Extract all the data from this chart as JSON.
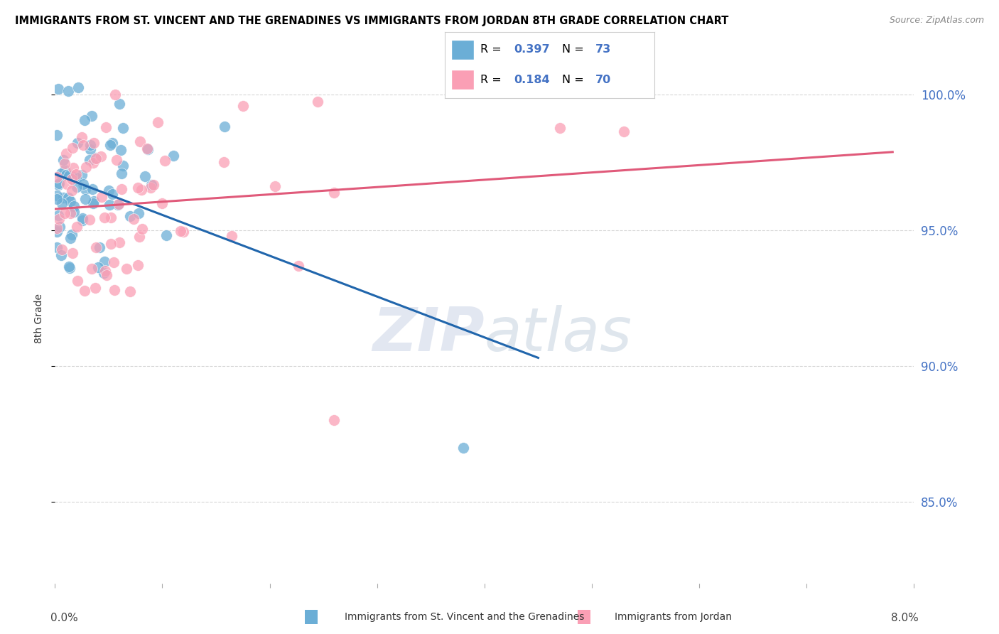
{
  "title": "IMMIGRANTS FROM ST. VINCENT AND THE GRENADINES VS IMMIGRANTS FROM JORDAN 8TH GRADE CORRELATION CHART",
  "source": "Source: ZipAtlas.com",
  "ylabel": "8th Grade",
  "xlim": [
    0.0,
    8.0
  ],
  "ylim": [
    82.0,
    101.5
  ],
  "yticks": [
    85.0,
    90.0,
    95.0,
    100.0
  ],
  "xticks": [
    0.0,
    1.0,
    2.0,
    3.0,
    4.0,
    5.0,
    6.0,
    7.0,
    8.0
  ],
  "blue_color": "#6baed6",
  "pink_color": "#fa9fb5",
  "blue_line_color": "#2166ac",
  "pink_line_color": "#e05a7a",
  "R_blue": 0.397,
  "N_blue": 73,
  "R_pink": 0.184,
  "N_pink": 70,
  "legend_label_blue": "Immigrants from St. Vincent and the Grenadines",
  "legend_label_pink": "Immigrants from Jordan",
  "ytick_color": "#4472c4",
  "grid_color": "#cccccc",
  "watermark_color": "#d0d8e8"
}
